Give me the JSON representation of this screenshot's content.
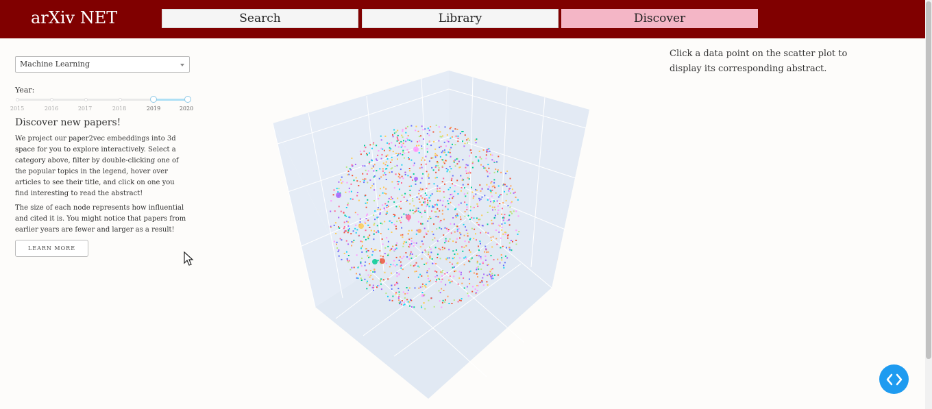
{
  "app": {
    "title": "arXiv NET"
  },
  "nav": [
    {
      "label": "Search"
    },
    {
      "label": "Library"
    },
    {
      "label": "Discover"
    }
  ],
  "sidebar": {
    "category": "Machine Learning",
    "year_label": "Year:",
    "years": [
      "2015",
      "2016",
      "2017",
      "2018",
      "2019",
      "2020"
    ],
    "year_range": [
      "2019",
      "2020"
    ],
    "heading": "Discover new papers!",
    "para1": "We project our paper2vec embeddings into 3d space for you to explore interactively. Select a category above, filter by double-clicking one of the popular topics in the legend, hover over articles to see their title, and click on one you find interesting to read the abstract!",
    "para2": "The size of each node represents how influential and cited it is. You might notice that papers from earlier years are fewer and larger as a result!",
    "learn_more": "LEARN MORE"
  },
  "abstract_panel": {
    "text": "Click a data point on the scatter plot to display its corresponding abstract."
  },
  "colors": {
    "header": "#800000",
    "active_tab": "#f4b6c6",
    "scene_bg": "#e5ecf6",
    "fab": "#1e9bf0",
    "points": [
      "#636efa",
      "#ef553b",
      "#00cc96",
      "#ab63fa",
      "#ffa15a",
      "#19d3f3",
      "#ff6692",
      "#b6e880",
      "#ff97ff",
      "#fecb52"
    ]
  },
  "icons": {
    "cursor": "mouse-pointer-icon",
    "fab": "code-brackets-icon",
    "dropdown": "caret-down-icon"
  }
}
